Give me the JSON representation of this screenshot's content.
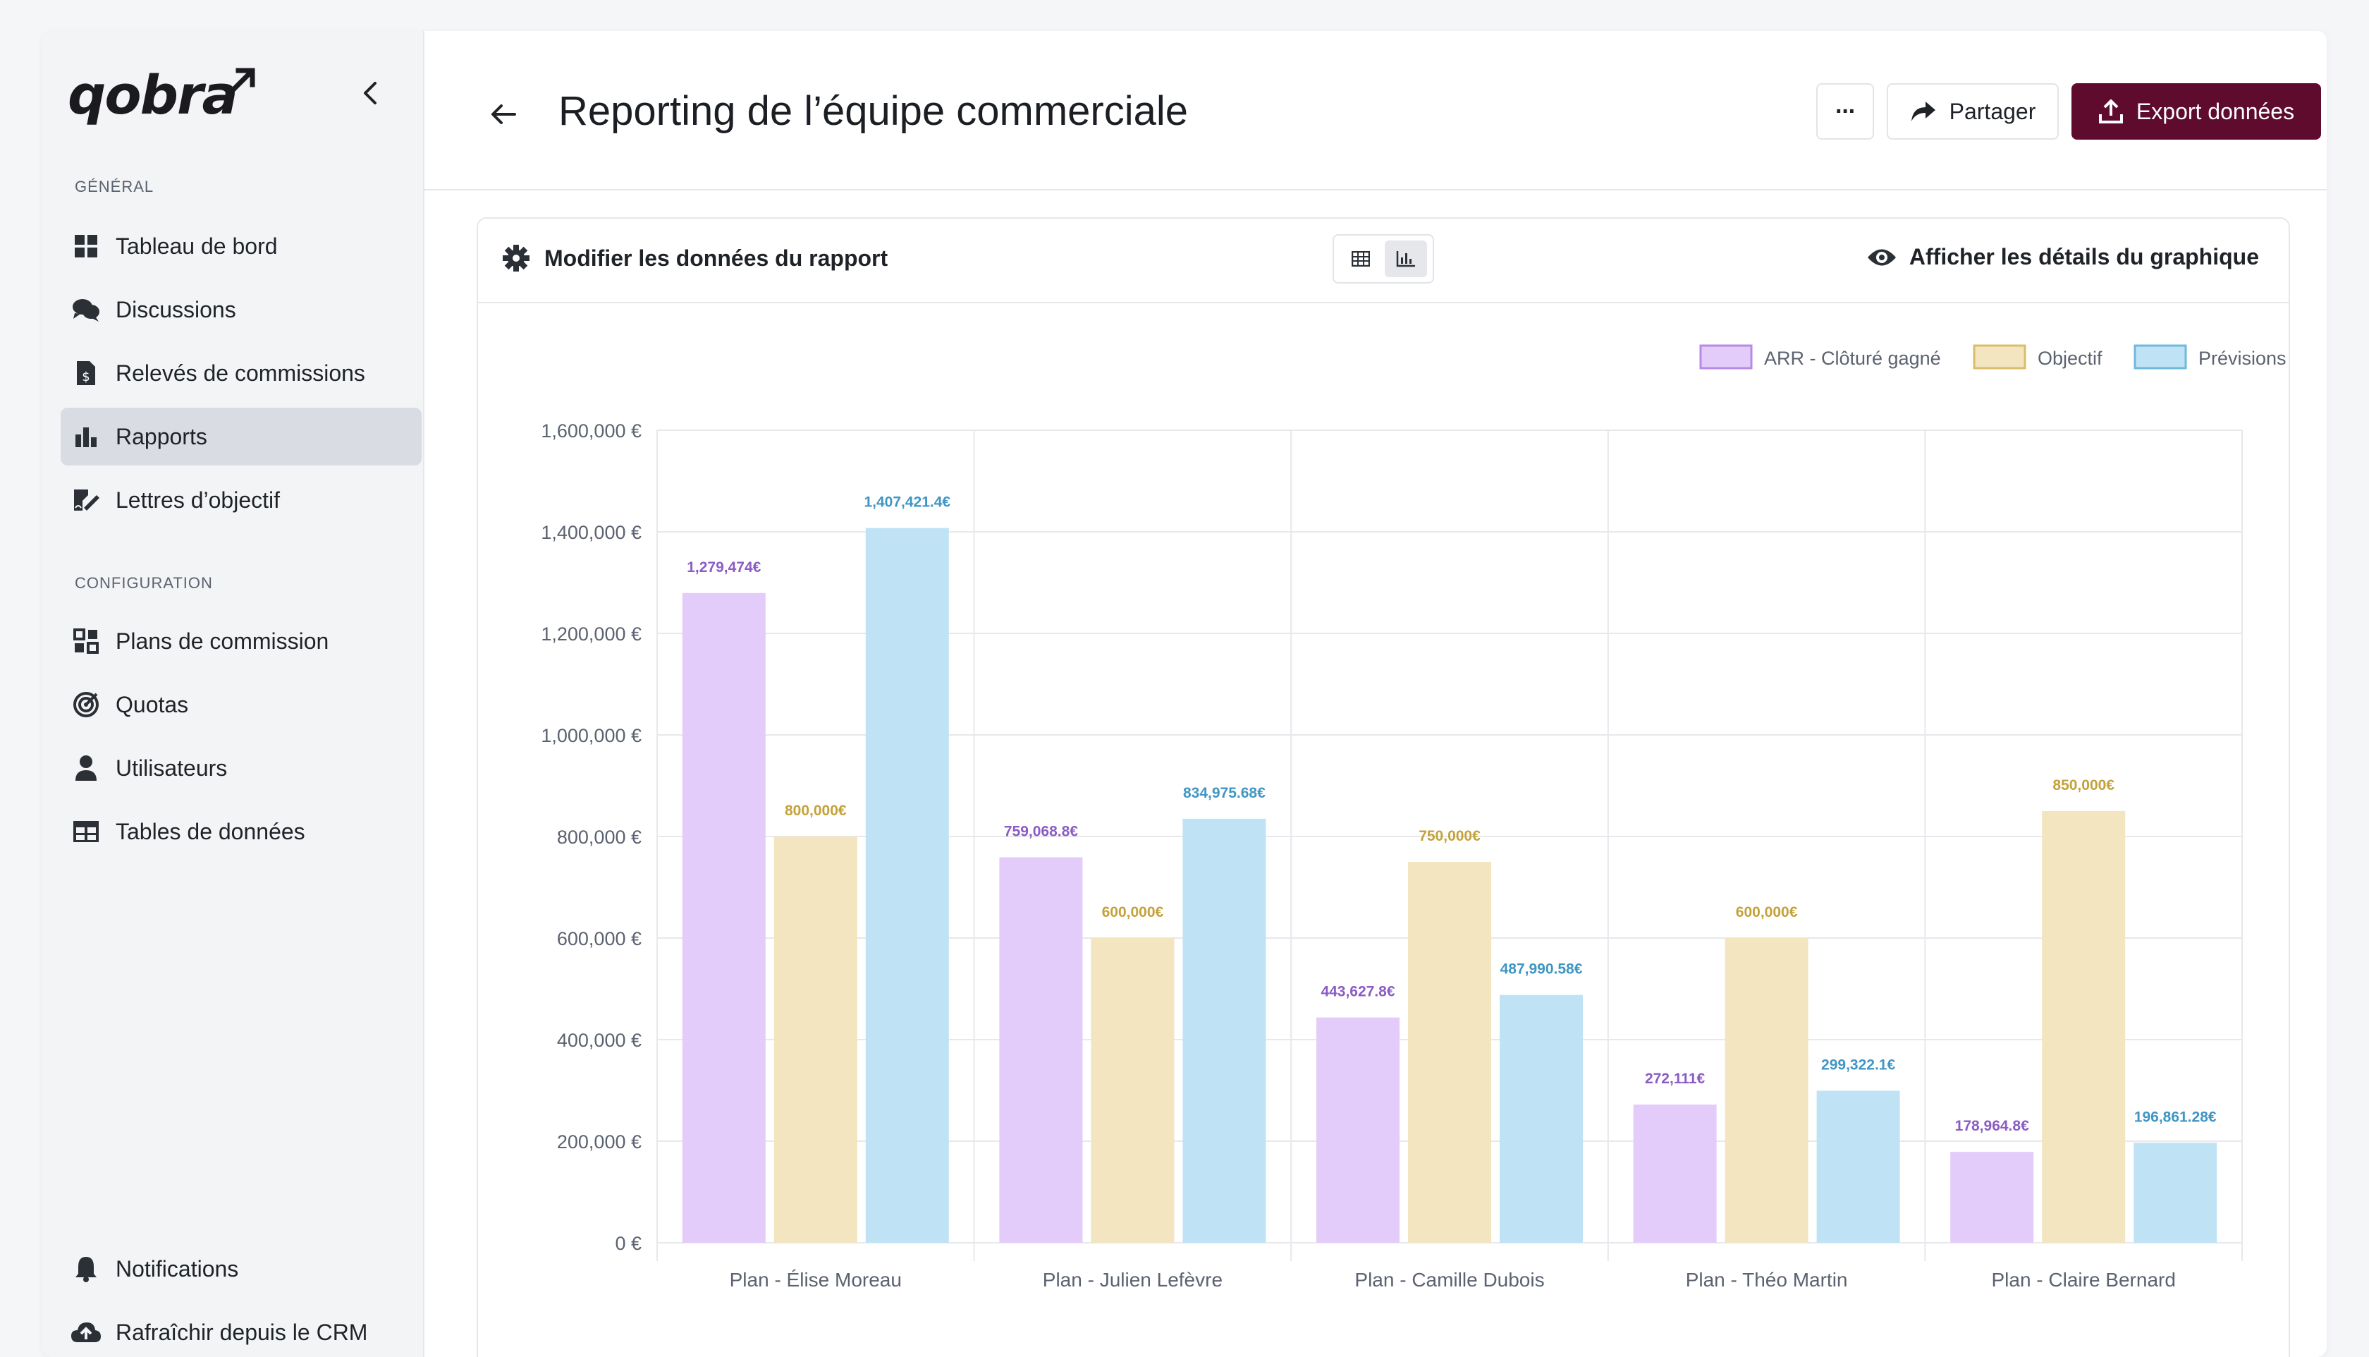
{
  "app": {
    "logo": "qobra",
    "collapse_icon": "chevron-left-icon"
  },
  "sidebar": {
    "section_general": "GÉNÉRAL",
    "section_config": "CONFIGURATION",
    "general_items": [
      {
        "label": "Tableau de bord",
        "icon": "dashboard-grid-icon"
      },
      {
        "label": "Discussions",
        "icon": "chat-bubbles-icon"
      },
      {
        "label": "Relevés de commissions",
        "icon": "invoice-dollar-icon"
      },
      {
        "label": "Rapports",
        "icon": "bar-chart-icon",
        "active": true
      },
      {
        "label": "Lettres d’objectif",
        "icon": "signature-document-icon"
      }
    ],
    "config_items": [
      {
        "label": "Plans de commission",
        "icon": "plans-grid-icon"
      },
      {
        "label": "Quotas",
        "icon": "target-icon"
      },
      {
        "label": "Utilisateurs",
        "icon": "user-icon"
      },
      {
        "label": "Tables de données",
        "icon": "table-icon"
      }
    ],
    "bottom_items": [
      {
        "label": "Notifications",
        "icon": "bell-icon"
      },
      {
        "label": "Rafraîchir depuis le CRM",
        "icon": "cloud-upload-icon"
      }
    ]
  },
  "header": {
    "title": "Reporting de l’équipe commerciale",
    "more_label": "···",
    "share_label": "Partager",
    "export_label": "Export données"
  },
  "card": {
    "edit_label": "Modifier les données du rapport",
    "details_label": "Afficher les détails du graphique",
    "view_toggle": [
      "table",
      "chart"
    ],
    "active_view": "chart"
  },
  "colors": {
    "arr": "#e4ccfa",
    "arr_border": "#b68ae6",
    "arr_label": "#8a5cc4",
    "objectif": "#f2e5bf",
    "objectif_border": "#d9bd6a",
    "objectif_label": "#c4a23a",
    "prevision": "#bfe3f4",
    "prevision_border": "#6fb8de",
    "prevision_label": "#3f96c4",
    "accent": "#5e0b2e"
  },
  "chart_data": {
    "type": "bar",
    "categories": [
      "Plan - Élise Moreau",
      "Plan - Julien Lefèvre",
      "Plan - Camille Dubois",
      "Plan - Théo Martin",
      "Plan - Claire Bernard"
    ],
    "series": [
      {
        "name": "ARR - Clôturé gagné",
        "values": [
          1279474,
          759068.8,
          443627.8,
          272111,
          178964.8
        ],
        "labels": [
          "1,279,474€",
          "759,068.8€",
          "443,627.8€",
          "272,111€",
          "178,964.8€"
        ]
      },
      {
        "name": "Objectif",
        "values": [
          800000,
          600000,
          750000,
          600000,
          850000
        ],
        "labels": [
          "800,000€",
          "600,000€",
          "750,000€",
          "600,000€",
          "850,000€"
        ]
      },
      {
        "name": "Prévisions",
        "values": [
          1407421.4,
          834975.68,
          487990.58,
          299322.1,
          196861.28
        ],
        "labels": [
          "1,407,421.4€",
          "834,975.68€",
          "487,990.58€",
          "299,322.1€",
          "196,861.28€"
        ]
      }
    ],
    "yticks": [
      "0 €",
      "200,000 €",
      "400,000 €",
      "600,000 €",
      "800,000 €",
      "1,000,000 €",
      "1,200,000 €",
      "1,400,000 €",
      "1,600,000 €"
    ],
    "ylim": [
      0,
      1600000
    ],
    "grid": true,
    "legend": "top-right"
  }
}
